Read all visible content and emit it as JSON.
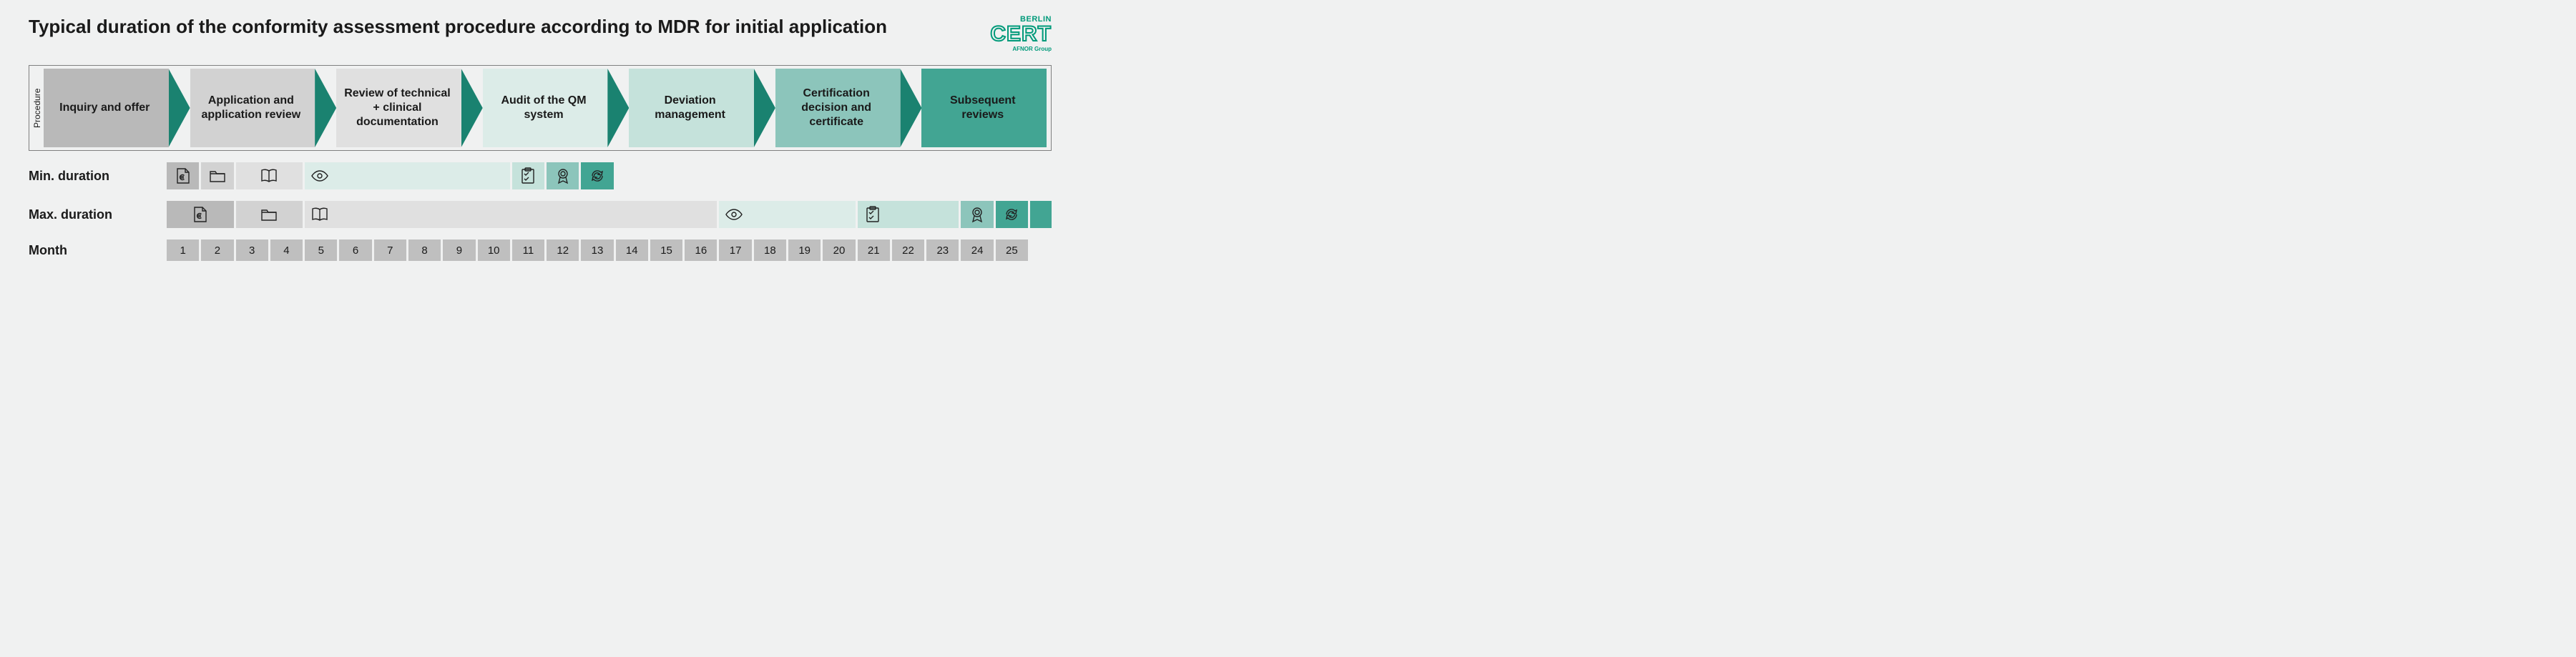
{
  "title": "Typical duration of the conformity assessment procedure according to MDR for initial application",
  "logo": {
    "berlin": "BERLIN",
    "cert": "CERT",
    "afnor": "AFNOR Group"
  },
  "procedure_label": "Procedure",
  "steps": [
    {
      "label": "Inquiry and offer",
      "color": "#b9b9b9"
    },
    {
      "label": "Application and application review",
      "color": "#d2d2d2"
    },
    {
      "label": "Review of technical + clinical documentation",
      "color": "#e0e0e0"
    },
    {
      "label": "Audit of the QM system",
      "color": "#dcece8"
    },
    {
      "label": "Deviation management",
      "color": "#c5e2db"
    },
    {
      "label": "Certification decision and certificate",
      "color": "#8cc5bb"
    },
    {
      "label": "Subsequent reviews",
      "color": "#42a593"
    }
  ],
  "months": {
    "count": 25,
    "bg": "#bfbfbf"
  },
  "row_labels": {
    "min": "Min. duration",
    "max": "Max. duration",
    "month": "Month"
  },
  "min_segments": [
    {
      "start": 1,
      "end": 1,
      "color": "#b9b9b9",
      "icon": "euro-doc"
    },
    {
      "start": 2,
      "end": 2,
      "color": "#d2d2d2",
      "icon": "folder"
    },
    {
      "start": 3,
      "end": 4,
      "color": "#e0e0e0",
      "icon": "book"
    },
    {
      "start": 5,
      "end": 10,
      "color": "#dcece8",
      "icon": "eye"
    },
    {
      "start": 11,
      "end": 11,
      "color": "#c5e2db",
      "icon": "clipboard"
    },
    {
      "start": 12,
      "end": 12,
      "color": "#8cc5bb",
      "icon": "badge"
    },
    {
      "start": 13,
      "end": 13,
      "color": "#42a593",
      "icon": "cycle"
    }
  ],
  "max_segments": [
    {
      "start": 1,
      "end": 2,
      "color": "#b9b9b9",
      "icon": "euro-doc"
    },
    {
      "start": 3,
      "end": 4,
      "color": "#d2d2d2",
      "icon": "folder"
    },
    {
      "start": 5,
      "end": 16,
      "color": "#e0e0e0",
      "icon": "book"
    },
    {
      "start": 17,
      "end": 20,
      "color": "#dcece8",
      "icon": "eye"
    },
    {
      "start": 21,
      "end": 23,
      "color": "#c5e2db",
      "icon": "clipboard"
    },
    {
      "start": 24,
      "end": 24,
      "color": "#8cc5bb",
      "icon": "badge"
    },
    {
      "start": 25,
      "end": 25,
      "color": "#42a593",
      "icon": "cycle"
    }
  ],
  "max_tail_color": "#42a593"
}
